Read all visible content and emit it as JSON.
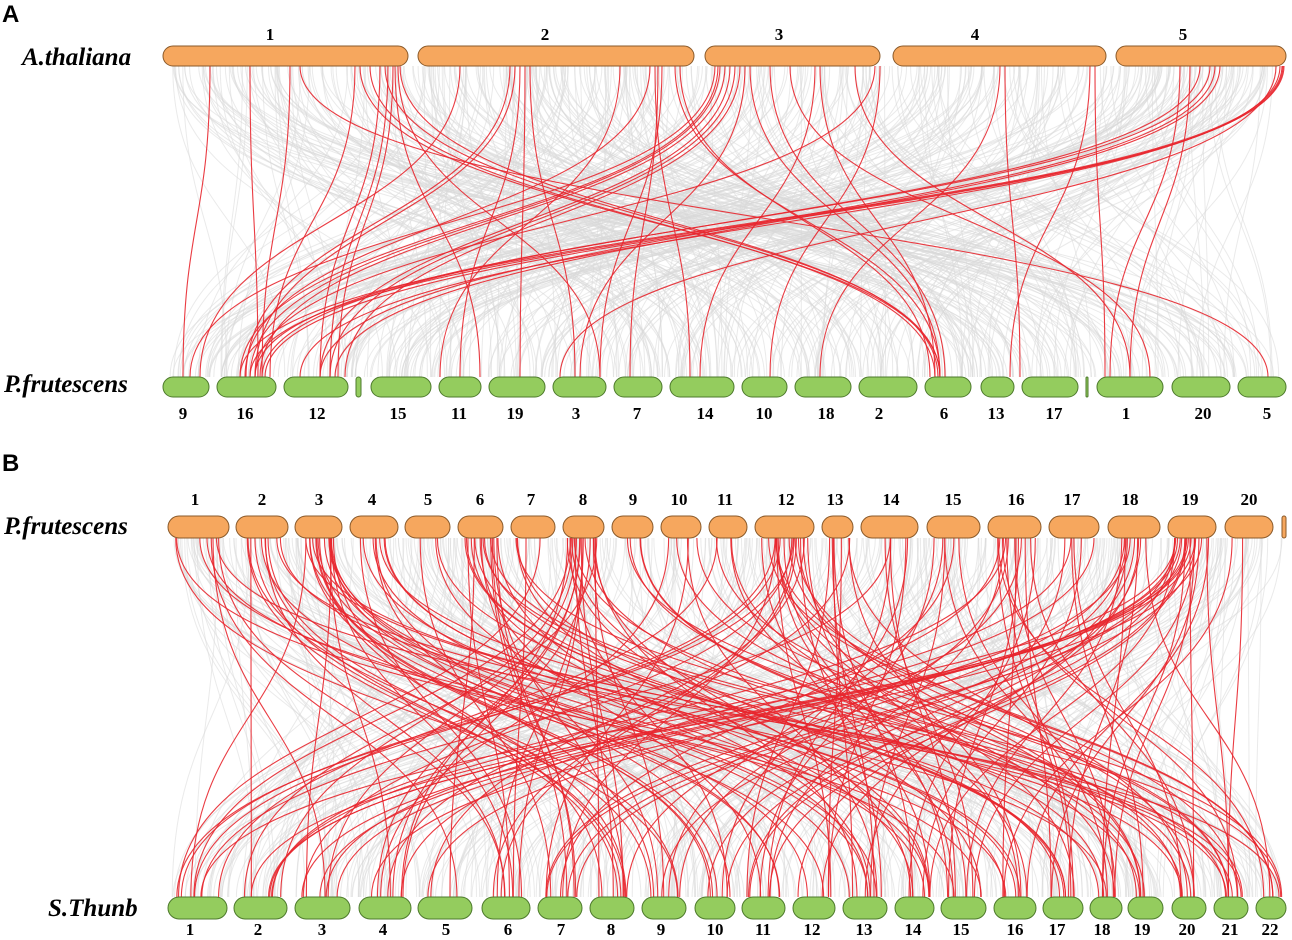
{
  "panels": [
    {
      "letter": "A",
      "top_species": "A.thaliana",
      "bottom_species": "P.frutescens",
      "top_chromosomes": [
        "1",
        "2",
        "3",
        "4",
        "5"
      ],
      "bottom_chromosomes": [
        "9",
        "16",
        "12",
        "",
        "15",
        "11",
        "19",
        "3",
        "7",
        "14",
        "10",
        "18",
        "2",
        "6",
        "13",
        "17",
        "",
        "1",
        "20",
        "5"
      ],
      "colors": {
        "top": "#f6a75e",
        "bottom": "#94cc5e",
        "collinear_red": "#e8262e",
        "background_links": "#d9d9d9"
      }
    },
    {
      "letter": "B",
      "top_species": "P.frutescens",
      "bottom_species": "S.Thunb",
      "top_chromosomes": [
        "1",
        "2",
        "3",
        "4",
        "5",
        "6",
        "7",
        "8",
        "9",
        "10",
        "11",
        "12",
        "13",
        "14",
        "15",
        "16",
        "17",
        "18",
        "19",
        "20",
        ""
      ],
      "bottom_chromosomes": [
        "1",
        "2",
        "3",
        "4",
        "5",
        "6",
        "7",
        "8",
        "9",
        "10",
        "11",
        "12",
        "13",
        "14",
        "15",
        "16",
        "17",
        "18",
        "19",
        "20",
        "21",
        "22"
      ],
      "colors": {
        "top": "#f6a75e",
        "bottom": "#94cc5e",
        "collinear_red": "#e8262e",
        "background_links": "#d9d9d9"
      }
    }
  ]
}
